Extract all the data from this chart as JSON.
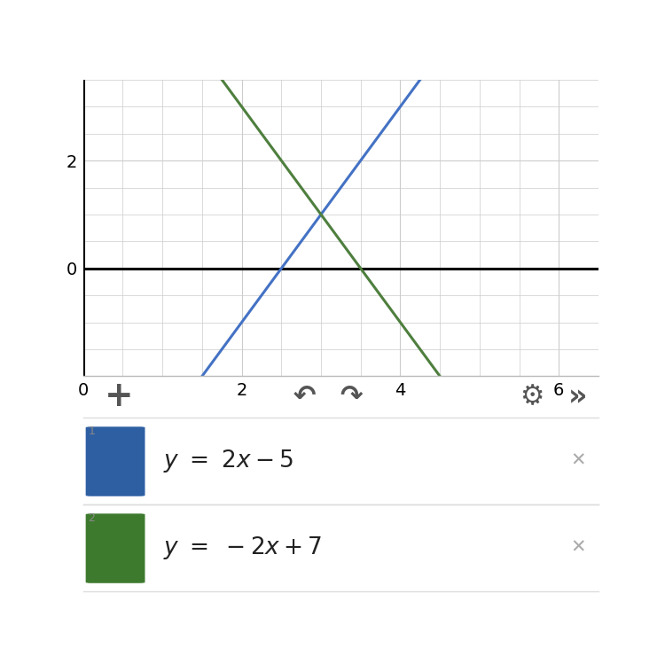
{
  "line1_slope": 2,
  "line1_intercept": -5,
  "line1_color": "#4472C4",
  "line2_slope": -2,
  "line2_intercept": 7,
  "line2_color": "#4E7F3E",
  "xmin": 0,
  "xmax": 6.5,
  "ymin": -2,
  "ymax": 3.5,
  "xticks": [
    0,
    2,
    4,
    6
  ],
  "yticks": [
    0,
    2
  ],
  "minor_step_x": 0.5,
  "minor_step_y": 0.5,
  "grid_color": "#cccccc",
  "bg_color": "#ffffff",
  "axis_color": "#000000",
  "toolbar_bg": "#e0e0e0",
  "panel_bg": "#ffffff",
  "panel_border_color": "#dddddd",
  "line_width": 2.2,
  "icon1_color": "#2E5FA3",
  "icon2_color": "#3E7A2E",
  "label1_num": "1",
  "label2_num": "2",
  "formula1": "$y\\ =\\ 2x - 5$",
  "formula2": "$y\\ =\\ -2x + 7$",
  "x_close": "✕",
  "toolbar_items": [
    [
      0.07,
      "+",
      28
    ],
    [
      0.43,
      "↶",
      22
    ],
    [
      0.52,
      "↷",
      22
    ],
    [
      0.87,
      "⚙",
      22
    ],
    [
      0.96,
      "»",
      24
    ]
  ]
}
